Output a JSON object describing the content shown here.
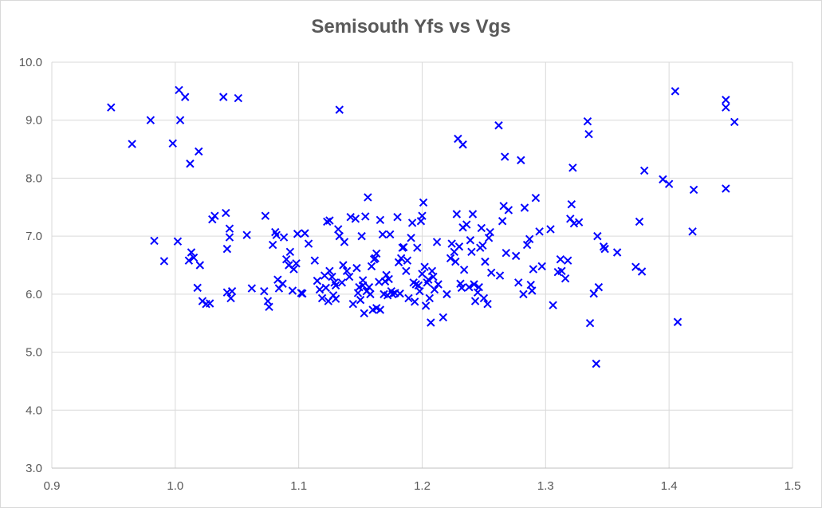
{
  "chart_data": {
    "type": "scatter",
    "title": "Semisouth Yfs vs Vgs",
    "xlabel": "",
    "ylabel": "",
    "xlim": [
      0.9,
      1.5
    ],
    "ylim": [
      3.0,
      10.0
    ],
    "x_ticks": [
      "0.9",
      "1.0",
      "1.1",
      "1.2",
      "1.3",
      "1.4",
      "1.5"
    ],
    "y_ticks": [
      "3.0",
      "4.0",
      "5.0",
      "6.0",
      "7.0",
      "8.0",
      "9.0",
      "10.0"
    ],
    "grid": true,
    "marker": "x",
    "color": "#0000ff",
    "series": [
      {
        "points": [
          [
            0.948,
            9.22
          ],
          [
            0.965,
            8.59
          ],
          [
            0.98,
            9.0
          ],
          [
            0.983,
            6.92
          ],
          [
            0.991,
            6.57
          ],
          [
            0.998,
            8.6
          ],
          [
            1.002,
            6.91
          ],
          [
            1.003,
            9.52
          ],
          [
            1.004,
            9.0
          ],
          [
            1.008,
            9.4
          ],
          [
            1.012,
            8.25
          ],
          [
            1.011,
            6.58
          ],
          [
            1.013,
            6.72
          ],
          [
            1.015,
            6.63
          ],
          [
            1.018,
            6.11
          ],
          [
            1.019,
            8.46
          ],
          [
            1.02,
            6.5
          ],
          [
            1.022,
            5.88
          ],
          [
            1.025,
            5.83
          ],
          [
            1.028,
            5.84
          ],
          [
            1.03,
            7.29
          ],
          [
            1.032,
            7.35
          ],
          [
            1.039,
            9.4
          ],
          [
            1.041,
            7.4
          ],
          [
            1.042,
            6.03
          ],
          [
            1.042,
            6.78
          ],
          [
            1.044,
            7.13
          ],
          [
            1.044,
            6.98
          ],
          [
            1.045,
            5.93
          ],
          [
            1.046,
            6.05
          ],
          [
            1.051,
            9.38
          ],
          [
            1.058,
            7.02
          ],
          [
            1.062,
            6.1
          ],
          [
            1.072,
            6.05
          ],
          [
            1.073,
            7.35
          ],
          [
            1.075,
            5.88
          ],
          [
            1.076,
            5.78
          ],
          [
            1.079,
            6.85
          ],
          [
            1.081,
            7.07
          ],
          [
            1.082,
            7.02
          ],
          [
            1.083,
            6.25
          ],
          [
            1.084,
            6.1
          ],
          [
            1.087,
            6.18
          ],
          [
            1.088,
            6.98
          ],
          [
            1.09,
            6.6
          ],
          [
            1.092,
            6.5
          ],
          [
            1.093,
            6.73
          ],
          [
            1.095,
            6.06
          ],
          [
            1.096,
            6.43
          ],
          [
            1.098,
            6.53
          ],
          [
            1.099,
            7.04
          ],
          [
            1.102,
            6.02
          ],
          [
            1.103,
            6.01
          ],
          [
            1.105,
            7.05
          ],
          [
            1.108,
            6.87
          ],
          [
            1.113,
            6.58
          ],
          [
            1.115,
            6.23
          ],
          [
            1.117,
            6.08
          ],
          [
            1.119,
            5.93
          ],
          [
            1.121,
            6.32
          ],
          [
            1.122,
            6.11
          ],
          [
            1.123,
            7.25
          ],
          [
            1.124,
            5.88
          ],
          [
            1.125,
            7.27
          ],
          [
            1.125,
            6.4
          ],
          [
            1.127,
            6.3
          ],
          [
            1.128,
            5.98
          ],
          [
            1.129,
            6.2
          ],
          [
            1.13,
            6.15
          ],
          [
            1.13,
            5.92
          ],
          [
            1.132,
            7.12
          ],
          [
            1.133,
            7.0
          ],
          [
            1.133,
            9.18
          ],
          [
            1.135,
            6.2
          ],
          [
            1.136,
            6.5
          ],
          [
            1.137,
            6.9
          ],
          [
            1.139,
            6.4
          ],
          [
            1.141,
            6.3
          ],
          [
            1.142,
            7.33
          ],
          [
            1.144,
            5.83
          ],
          [
            1.146,
            7.3
          ],
          [
            1.147,
            6.45
          ],
          [
            1.148,
            6.02
          ],
          [
            1.149,
            6.12
          ],
          [
            1.15,
            5.9
          ],
          [
            1.151,
            7.0
          ],
          [
            1.152,
            6.24
          ],
          [
            1.152,
            6.15
          ],
          [
            1.153,
            5.67
          ],
          [
            1.154,
            7.34
          ],
          [
            1.155,
            6.05
          ],
          [
            1.156,
            7.67
          ],
          [
            1.157,
            6.12
          ],
          [
            1.158,
            6.0
          ],
          [
            1.159,
            6.48
          ],
          [
            1.16,
            5.73
          ],
          [
            1.161,
            6.6
          ],
          [
            1.162,
            6.62
          ],
          [
            1.163,
            5.76
          ],
          [
            1.163,
            6.7
          ],
          [
            1.165,
            6.21
          ],
          [
            1.166,
            5.73
          ],
          [
            1.166,
            7.28
          ],
          [
            1.168,
            7.03
          ],
          [
            1.169,
            6.0
          ],
          [
            1.17,
            6.22
          ],
          [
            1.171,
            6.33
          ],
          [
            1.172,
            5.98
          ],
          [
            1.173,
            6.26
          ],
          [
            1.174,
            7.03
          ],
          [
            1.175,
            6.05
          ],
          [
            1.176,
            6.0
          ],
          [
            1.178,
            6.02
          ],
          [
            1.18,
            7.33
          ],
          [
            1.181,
            6.55
          ],
          [
            1.182,
            6.01
          ],
          [
            1.183,
            6.62
          ],
          [
            1.184,
            6.8
          ],
          [
            1.185,
            6.81
          ],
          [
            1.187,
            6.4
          ],
          [
            1.188,
            6.58
          ],
          [
            1.189,
            5.93
          ],
          [
            1.191,
            6.97
          ],
          [
            1.192,
            7.23
          ],
          [
            1.193,
            6.2
          ],
          [
            1.194,
            5.87
          ],
          [
            1.195,
            6.17
          ],
          [
            1.196,
            6.8
          ],
          [
            1.197,
            6.15
          ],
          [
            1.198,
            6.05
          ],
          [
            1.199,
            7.26
          ],
          [
            1.2,
            6.35
          ],
          [
            1.2,
            7.35
          ],
          [
            1.201,
            7.58
          ],
          [
            1.202,
            6.47
          ],
          [
            1.203,
            5.8
          ],
          [
            1.204,
            6.2
          ],
          [
            1.205,
            6.25
          ],
          [
            1.206,
            5.93
          ],
          [
            1.207,
            5.51
          ],
          [
            1.208,
            6.4
          ],
          [
            1.209,
            6.3
          ],
          [
            1.21,
            6.08
          ],
          [
            1.212,
            6.9
          ],
          [
            1.213,
            6.17
          ],
          [
            1.217,
            5.6
          ],
          [
            1.22,
            6.0
          ],
          [
            1.223,
            6.62
          ],
          [
            1.224,
            6.87
          ],
          [
            1.226,
            6.73
          ],
          [
            1.227,
            6.56
          ],
          [
            1.228,
            7.38
          ],
          [
            1.229,
            8.68
          ],
          [
            1.23,
            6.82
          ],
          [
            1.231,
            6.18
          ],
          [
            1.232,
            6.11
          ],
          [
            1.233,
            8.58
          ],
          [
            1.233,
            7.15
          ],
          [
            1.234,
            6.42
          ],
          [
            1.236,
            7.2
          ],
          [
            1.238,
            6.12
          ],
          [
            1.239,
            6.93
          ],
          [
            1.24,
            6.73
          ],
          [
            1.241,
            7.38
          ],
          [
            1.242,
            6.17
          ],
          [
            1.243,
            5.88
          ],
          [
            1.245,
            6.03
          ],
          [
            1.246,
            6.12
          ],
          [
            1.247,
            6.8
          ],
          [
            1.248,
            7.14
          ],
          [
            1.249,
            6.84
          ],
          [
            1.25,
            5.93
          ],
          [
            1.251,
            6.56
          ],
          [
            1.253,
            5.83
          ],
          [
            1.254,
            6.97
          ],
          [
            1.255,
            7.07
          ],
          [
            1.256,
            6.37
          ],
          [
            1.262,
            8.91
          ],
          [
            1.263,
            6.32
          ],
          [
            1.265,
            7.26
          ],
          [
            1.266,
            7.52
          ],
          [
            1.267,
            8.37
          ],
          [
            1.268,
            6.71
          ],
          [
            1.27,
            7.45
          ],
          [
            1.276,
            6.66
          ],
          [
            1.278,
            6.2
          ],
          [
            1.28,
            8.31
          ],
          [
            1.282,
            6.0
          ],
          [
            1.283,
            7.49
          ],
          [
            1.285,
            6.85
          ],
          [
            1.287,
            6.95
          ],
          [
            1.288,
            6.16
          ],
          [
            1.289,
            6.06
          ],
          [
            1.29,
            6.43
          ],
          [
            1.292,
            7.66
          ],
          [
            1.295,
            7.08
          ],
          [
            1.297,
            6.48
          ],
          [
            1.304,
            7.12
          ],
          [
            1.306,
            5.81
          ],
          [
            1.31,
            6.38
          ],
          [
            1.312,
            6.6
          ],
          [
            1.313,
            6.4
          ],
          [
            1.316,
            6.27
          ],
          [
            1.318,
            6.58
          ],
          [
            1.32,
            7.3
          ],
          [
            1.321,
            7.55
          ],
          [
            1.322,
            8.18
          ],
          [
            1.323,
            7.22
          ],
          [
            1.327,
            7.24
          ],
          [
            1.334,
            8.98
          ],
          [
            1.335,
            8.76
          ],
          [
            1.336,
            5.5
          ],
          [
            1.339,
            6.01
          ],
          [
            1.341,
            4.8
          ],
          [
            1.342,
            7.0
          ],
          [
            1.343,
            6.12
          ],
          [
            1.347,
            6.82
          ],
          [
            1.348,
            6.78
          ],
          [
            1.358,
            6.72
          ],
          [
            1.373,
            6.47
          ],
          [
            1.376,
            7.25
          ],
          [
            1.378,
            6.39
          ],
          [
            1.38,
            8.13
          ],
          [
            1.395,
            7.98
          ],
          [
            1.4,
            7.9
          ],
          [
            1.405,
            9.5
          ],
          [
            1.407,
            5.52
          ],
          [
            1.419,
            7.08
          ],
          [
            1.42,
            7.8
          ],
          [
            1.446,
            9.22
          ],
          [
            1.446,
            9.35
          ],
          [
            1.446,
            7.82
          ],
          [
            1.453,
            8.97
          ]
        ]
      }
    ]
  }
}
